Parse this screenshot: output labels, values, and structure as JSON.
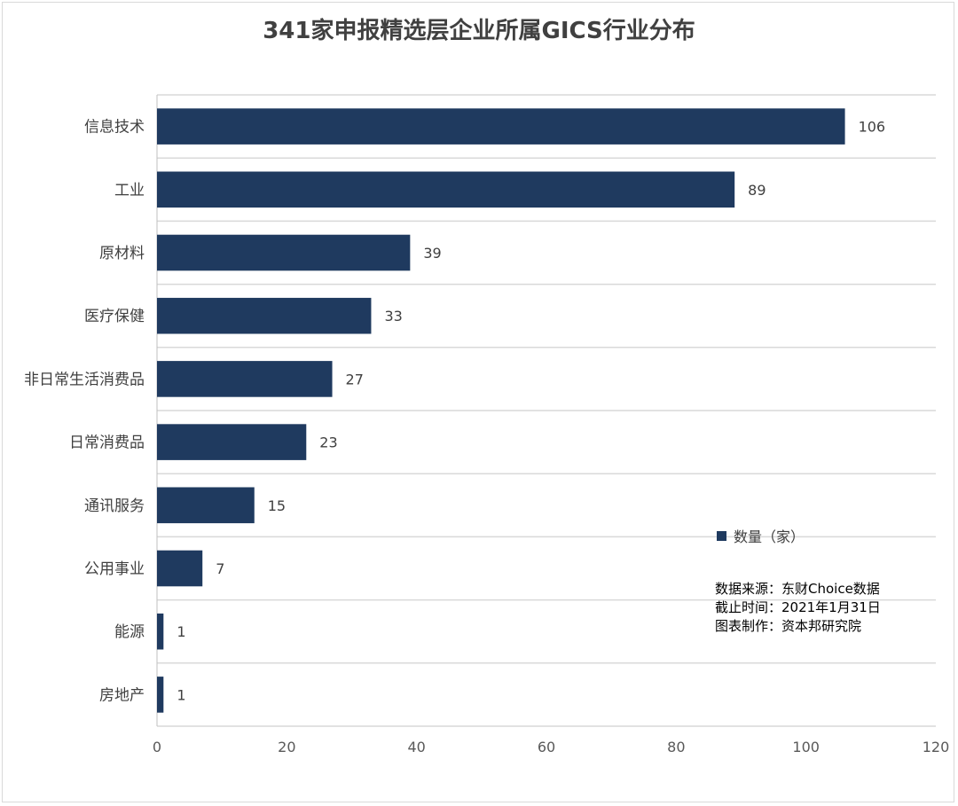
{
  "chart_data": {
    "type": "bar",
    "orientation": "horizontal",
    "title": "341家申报精选层企业所属GICS行业分布",
    "categories": [
      "信息技术",
      "工业",
      "原材料",
      "医疗保健",
      "非日常生活消费品",
      "日常消费品",
      "通讯服务",
      "公用事业",
      "能源",
      "房地产"
    ],
    "series": [
      {
        "name": "数量（家）",
        "values": [
          106,
          89,
          39,
          33,
          27,
          23,
          15,
          7,
          1,
          1
        ],
        "color": "#1f3a5f"
      }
    ],
    "xlim": [
      0,
      120
    ],
    "xticks": [
      0,
      20,
      40,
      60,
      80,
      100,
      120
    ],
    "grid": true,
    "data_labels": true,
    "legend_position": "right"
  },
  "notes": [
    "数据来源：东财Choice数据",
    "截止时间：2021年1月31日",
    "图表制作：资本邦研究院"
  ]
}
